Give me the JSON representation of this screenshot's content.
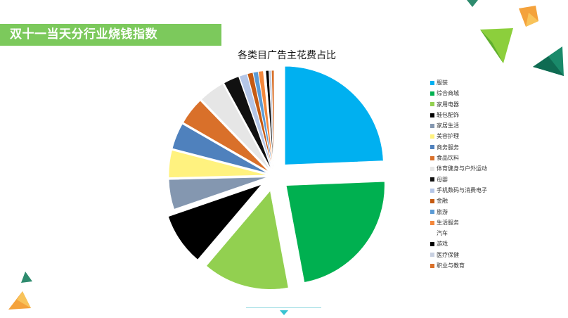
{
  "header": {
    "title": "双十一当天分行业烧钱指数"
  },
  "chart_data": {
    "type": "pie",
    "title": "各类目广告主花费占比",
    "legend_position": "right",
    "exploded": true,
    "series": [
      {
        "name": "服装",
        "value": 24.6,
        "color": "#00b0f0"
      },
      {
        "name": "综合商城",
        "value": 22.9,
        "color": "#00b050"
      },
      {
        "name": "家用电器",
        "value": 14.3,
        "color": "#92d050"
      },
      {
        "name": "鞋包配饰",
        "value": 8.6,
        "color": "#000000"
      },
      {
        "name": "家居生活",
        "value": 4.9,
        "color": "#8497b0"
      },
      {
        "name": "美容护理",
        "value": 4.5,
        "color": "#fff27f"
      },
      {
        "name": "商务服务",
        "value": 4.3,
        "color": "#4f81bd"
      },
      {
        "name": "食品饮料",
        "value": 4.5,
        "color": "#d9702a"
      },
      {
        "name": "体育健身与户外运动",
        "value": 4.3,
        "color": "#e6e6e6"
      },
      {
        "name": "母婴",
        "value": 2.6,
        "color": "#111111"
      },
      {
        "name": "手机数码与消费电子",
        "value": 1.3,
        "color": "#b4c6e7"
      },
      {
        "name": "金融",
        "value": 0.9,
        "color": "#c55a11"
      },
      {
        "name": "旅游",
        "value": 0.8,
        "color": "#5b9bd5"
      },
      {
        "name": "生活服务",
        "value": 0.8,
        "color": "#f4883c"
      },
      {
        "name": "汽车",
        "value": 0.35,
        "color": "#ffffff"
      },
      {
        "name": "游戏",
        "value": 0.5,
        "color": "#000000"
      },
      {
        "name": "医疗保健",
        "value": 0.4,
        "color": "#c8d0e0"
      },
      {
        "name": "职业与教育",
        "value": 0.4,
        "color": "#d9702a"
      }
    ]
  }
}
